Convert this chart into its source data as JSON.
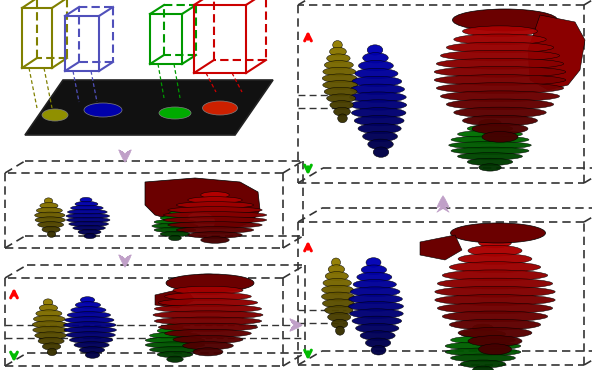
{
  "bg_color": "#ffffff",
  "organ_colors": {
    "liver_dark": "#6B0000",
    "liver_mid": "#8B0000",
    "liver_bright": "#cc1111",
    "spleen_dark": "#004400",
    "spleen_mid": "#006400",
    "spleen_bright": "#00aa00",
    "blue_dark": "#000055",
    "blue_mid": "#00008B",
    "blue_bright": "#0000cc",
    "yellow_dark": "#504500",
    "yellow_mid": "#706000",
    "yellow_bright": "#999000"
  },
  "arrow_purple": "#c0a0c8",
  "arrow_red": "#ff0000",
  "arrow_green": "#00bb00",
  "dashed_color": "#333333",
  "box_yellow": "#808000",
  "box_blue": "#5050bb",
  "box_green": "#009900",
  "box_red": "#cc0000"
}
